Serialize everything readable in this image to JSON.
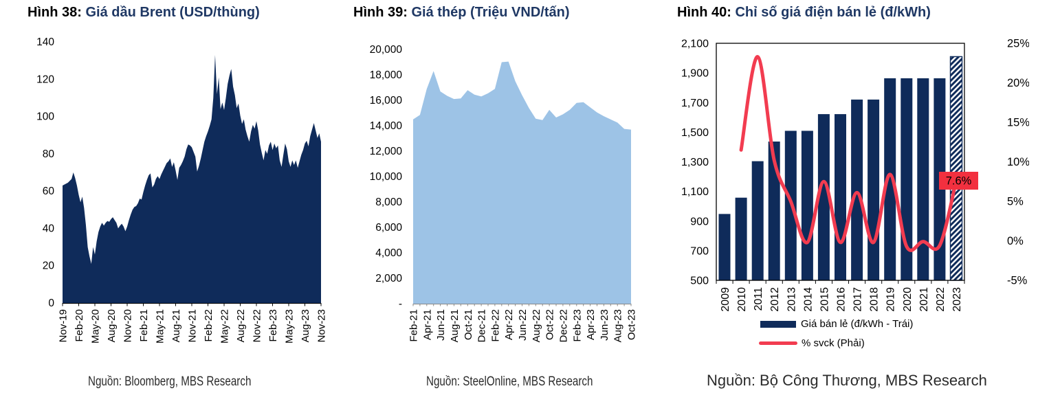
{
  "colors": {
    "navy": "#0f2b5a",
    "light_blue": "#9dc3e6",
    "red": "#f23c50",
    "title_blue": "#1f3864",
    "annotation_bg": "#f2303f",
    "annotation_text": "#262038",
    "axis_gray": "#888888"
  },
  "chart_data": [
    {
      "type": "area",
      "figure_label": "Hình 38:",
      "title": "Giá dầu Brent (USD/thùng)",
      "source": "Nguồn: Bloomberg, MBS Research",
      "ylim": [
        0,
        140
      ],
      "y_ticks": [
        0,
        20,
        40,
        60,
        80,
        100,
        120,
        140
      ],
      "x_labels": [
        "Nov-19",
        "Feb-20",
        "May-20",
        "Aug-20",
        "Nov-20",
        "Feb-21",
        "May-21",
        "Aug-21",
        "Nov-21",
        "Feb-22",
        "May-22",
        "Aug-22",
        "Nov-22",
        "Feb-23",
        "May-23",
        "Aug-23",
        "Nov-23"
      ],
      "values": [
        63,
        63.5,
        64,
        64.5,
        65.5,
        66.5,
        70,
        67,
        63,
        58,
        54,
        57,
        51,
        42,
        30,
        25,
        21,
        30,
        26,
        33,
        38,
        41,
        43,
        41.5,
        43,
        44,
        43.5,
        45,
        46,
        44.5,
        43,
        40,
        41.5,
        42.5,
        41,
        38.5,
        41,
        44.5,
        47.5,
        50,
        51.5,
        52,
        53.5,
        56,
        55.5,
        59.5,
        63,
        66,
        68.5,
        69.5,
        62,
        63.5,
        66.5,
        68,
        66.5,
        69,
        71,
        73,
        75,
        76,
        77.5,
        73,
        75.5,
        71,
        66,
        72.5,
        74,
        76,
        78.5,
        82.5,
        85,
        84.5,
        83.5,
        81,
        78.5,
        70.5,
        73.5,
        77.5,
        82,
        86.5,
        89.5,
        92,
        95,
        98.5,
        110,
        133,
        112,
        121,
        104,
        107.5,
        103.5,
        110,
        117.5,
        122,
        125.5,
        116,
        111.5,
        104.5,
        107,
        100.5,
        96,
        98.5,
        93,
        89.5,
        86.5,
        92,
        95.5,
        93.5,
        97.5,
        92.5,
        85,
        80.5,
        76.5,
        82,
        80,
        84.5,
        86.5,
        82,
        85.5,
        83,
        84.5,
        76.5,
        73,
        79.5,
        85.5,
        82.5,
        76,
        73,
        76.5,
        74,
        76.5,
        72.5,
        76,
        79.5,
        82,
        85.5,
        87,
        84,
        89.5,
        93,
        96.5,
        92.5,
        88.5,
        91,
        86.5
      ]
    },
    {
      "type": "area",
      "figure_label": "Hình 39:",
      "title": "Giá thép (Triệu VND/tấn)",
      "source": "Nguồn: SteelOnline, MBS Research",
      "ylim": [
        0,
        20000
      ],
      "y_tick_step": 2000,
      "y_tick_labels": [
        "-",
        "2,000",
        "4,000",
        "6,000",
        "8,000",
        "10,000",
        "12,000",
        "14,000",
        "16,000",
        "18,000",
        "20,000"
      ],
      "x_labels": [
        "Feb-21",
        "Apr-21",
        "Jun-21",
        "Aug-21",
        "Oct-21",
        "Dec-21",
        "Feb-22",
        "Apr-22",
        "Jun-22",
        "Aug-22",
        "Oct-22",
        "Dec-22",
        "Feb-23",
        "Apr-23",
        "Jun-23",
        "Aug-23",
        "Oct-23"
      ],
      "values": [
        14500,
        14850,
        16900,
        18300,
        16700,
        16350,
        16100,
        16150,
        16800,
        16450,
        16300,
        16550,
        16900,
        19000,
        19050,
        17500,
        16400,
        15400,
        14550,
        14450,
        15250,
        14650,
        14900,
        15250,
        15800,
        15850,
        15450,
        15050,
        14750,
        14500,
        14250,
        13750,
        13700
      ]
    },
    {
      "type": "bar+line",
      "figure_label": "Hình 40:",
      "title": "Chỉ số giá điện bán lẻ (đ/kWh)",
      "source": "Nguồn: Bộ Công Thương, MBS Research",
      "categories": [
        "2009",
        "2010",
        "2011",
        "2012",
        "2013",
        "2014",
        "2015",
        "2016",
        "2017",
        "2018",
        "2019",
        "2020",
        "2021",
        "2022",
        "2023"
      ],
      "bars": {
        "name": "Giá bán lẻ (đ/kWh - Trái)",
        "values": [
          948,
          1058,
          1304,
          1437,
          1509,
          1509,
          1622,
          1622,
          1720,
          1720,
          1864,
          1864,
          1864,
          1864,
          2010
        ],
        "last_bar_hatched": true
      },
      "line": {
        "name": "% svck (Phải)",
        "start_year": "2010",
        "values": [
          11.5,
          23.3,
          10.2,
          5,
          -0.2,
          7.5,
          -0.2,
          6.1,
          -0.2,
          8.4,
          -0.7,
          -0.1,
          -0.6,
          7.6
        ]
      },
      "left_axis": {
        "lim": [
          500,
          2100
        ],
        "tick_labels": [
          "500",
          "700",
          "900",
          "1,100",
          "1,300",
          "1,500",
          "1,700",
          "1,900",
          "2,100"
        ]
      },
      "right_axis": {
        "lim": [
          -5,
          25
        ],
        "tick_labels": [
          "-5%",
          "0%",
          "5%",
          "10%",
          "15%",
          "20%",
          "25%"
        ]
      },
      "annotation": "7.6%"
    }
  ]
}
